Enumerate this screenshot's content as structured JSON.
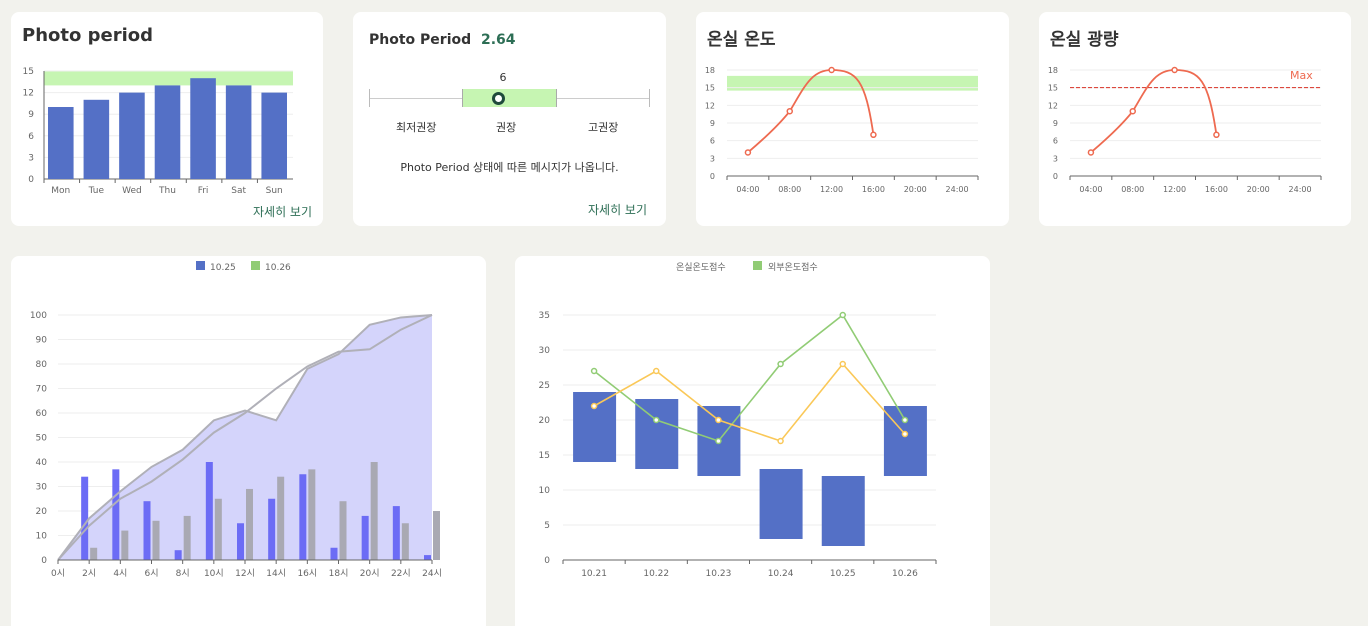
{
  "colors": {
    "bar_blue": "#5470c6",
    "band_green": "#c6f5b2",
    "line_red": "#ee6a50",
    "max_red": "#d93025",
    "link_green": "#2d6e55",
    "bar_purple": "#6c6cf5",
    "bar_gray": "#a9a9b3",
    "area_fill": "#d4d4fb",
    "line_green": "#91cc75",
    "line_yellow": "#fac858"
  },
  "card1": {
    "title": "Photo period",
    "link": "자세히 보기"
  },
  "card2": {
    "title": "Photo Period",
    "value": "2.64",
    "slider_value": "6",
    "label_low": "최저권장",
    "label_mid": "권장",
    "label_high": "고권장",
    "message": "Photo Period 상태에 따른 메시지가 나옵니다.",
    "link": "자세히 보기"
  },
  "card3": {
    "title": "온실 온도"
  },
  "card4": {
    "title": "온실 광량",
    "max_label": "Max"
  },
  "card5": {
    "legend": [
      "10.25",
      "10.26"
    ]
  },
  "card6": {
    "legend": [
      "온실온도점수",
      "외부온도점수"
    ]
  },
  "chart_data": [
    {
      "type": "bar",
      "title": "Photo period",
      "categories": [
        "Mon",
        "Tue",
        "Wed",
        "Thu",
        "Fri",
        "Sat",
        "Sun"
      ],
      "values": [
        10,
        11,
        12,
        13,
        14,
        13,
        12
      ],
      "band": [
        13,
        15
      ],
      "ylim": [
        0,
        15
      ],
      "yticks": [
        0,
        3,
        6,
        9,
        12,
        15
      ]
    },
    {
      "type": "line",
      "title": "온실 온도",
      "x": [
        "04:00",
        "08:00",
        "12:00",
        "16:00",
        "20:00",
        "24:00"
      ],
      "points": [
        {
          "x": 4,
          "y": 4
        },
        {
          "x": 8,
          "y": 11
        },
        {
          "x": 12,
          "y": 18
        },
        {
          "x": 16,
          "y": 7
        }
      ],
      "band": [
        14.5,
        17
      ],
      "ylim": [
        0,
        18
      ],
      "yticks": [
        0,
        3,
        6,
        9,
        12,
        15,
        18
      ]
    },
    {
      "type": "line",
      "title": "온실 광량",
      "x": [
        "04:00",
        "08:00",
        "12:00",
        "16:00",
        "20:00",
        "24:00"
      ],
      "points": [
        {
          "x": 4,
          "y": 4
        },
        {
          "x": 8,
          "y": 11
        },
        {
          "x": 12,
          "y": 18
        },
        {
          "x": 16,
          "y": 7
        }
      ],
      "max_line": 15,
      "ylim": [
        0,
        18
      ],
      "yticks": [
        0,
        3,
        6,
        9,
        12,
        15,
        18
      ]
    },
    {
      "type": "bar",
      "categories": [
        "0시",
        "2시",
        "4시",
        "6시",
        "8시",
        "10시",
        "12시",
        "14시",
        "16시",
        "18시",
        "20시",
        "22시",
        "24시"
      ],
      "series": [
        {
          "name": "10.25",
          "values": [
            0,
            34,
            37,
            24,
            4,
            40,
            15,
            25,
            35,
            5,
            18,
            22,
            2
          ]
        },
        {
          "values": [
            0,
            5,
            12,
            16,
            18,
            25,
            29,
            34,
            37,
            24,
            40,
            15,
            20
          ]
        }
      ],
      "lines": [
        {
          "name": "10.26",
          "values": [
            0,
            17,
            28,
            38,
            45,
            57,
            61,
            57,
            78,
            84,
            96,
            99,
            100
          ]
        },
        {
          "values": [
            0,
            14,
            25,
            32,
            41,
            52,
            60,
            70,
            79,
            85,
            86,
            94,
            100
          ]
        }
      ],
      "ylim": [
        0,
        100
      ],
      "yticks": [
        0,
        10,
        20,
        30,
        40,
        50,
        60,
        70,
        80,
        90,
        100
      ]
    },
    {
      "type": "bar",
      "categories": [
        "10.21",
        "10.22",
        "10.23",
        "10.24",
        "10.25",
        "10.26"
      ],
      "ranges": [
        [
          14,
          24
        ],
        [
          13,
          23
        ],
        [
          12,
          22
        ],
        [
          3,
          13
        ],
        [
          2,
          12
        ],
        [
          12,
          22
        ]
      ],
      "series": [
        {
          "name": "외부온도점수",
          "values": [
            27,
            20,
            17,
            28,
            35,
            20
          ]
        },
        {
          "values": [
            22,
            27,
            20,
            17,
            28,
            18
          ]
        }
      ],
      "ylim": [
        0,
        35
      ],
      "yticks": [
        0,
        5,
        10,
        15,
        20,
        25,
        30,
        35
      ]
    }
  ]
}
